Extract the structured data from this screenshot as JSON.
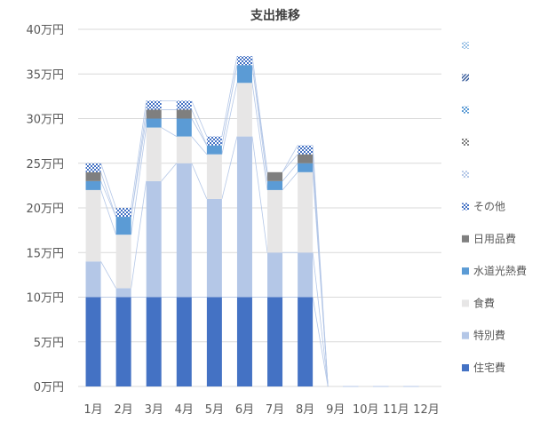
{
  "chart_data": {
    "type": "bar",
    "stacked": true,
    "title": "支出推移",
    "categories": [
      "1月",
      "2月",
      "3月",
      "4月",
      "5月",
      "6月",
      "7月",
      "8月",
      "9月",
      "10月",
      "11月",
      "12月"
    ],
    "y_ticks": [
      "0万円",
      "5万円",
      "10万円",
      "15万円",
      "20万円",
      "25万円",
      "30万円",
      "35万円",
      "40万円"
    ],
    "ylim": [
      0,
      40
    ],
    "ystep": 5,
    "grid": true,
    "legend_position": "right",
    "series": [
      {
        "name": "住宅費",
        "color": "#4472c4",
        "pattern": "solid",
        "values": [
          10,
          10,
          10,
          10,
          10,
          10,
          10,
          10,
          0,
          0,
          0,
          0
        ]
      },
      {
        "name": "特別費",
        "color": "#b4c7e7",
        "pattern": "solid",
        "values": [
          4,
          1,
          13,
          15,
          11,
          18,
          5,
          5,
          0,
          0,
          0,
          0
        ]
      },
      {
        "name": "食費",
        "color": "#e7e6e6",
        "pattern": "solid",
        "values": [
          8,
          6,
          6,
          3,
          5,
          6,
          7,
          9,
          0,
          0,
          0,
          0
        ]
      },
      {
        "name": "水道光熱費",
        "color": "#5b9bd5",
        "pattern": "solid",
        "values": [
          1,
          2,
          1,
          2,
          1,
          2,
          1,
          1,
          0,
          0,
          0,
          0
        ]
      },
      {
        "name": "日用品費",
        "color": "#7f7f7f",
        "pattern": "solid",
        "values": [
          1,
          0,
          1,
          1,
          0,
          0,
          1,
          1,
          0,
          0,
          0,
          0
        ]
      },
      {
        "name": "その他",
        "color": "#4472c4",
        "pattern": "checker",
        "values": [
          1,
          1,
          1,
          1,
          1,
          1,
          0,
          1,
          0,
          0,
          0,
          0
        ]
      },
      {
        "name": "",
        "color": "#b4c7e7",
        "pattern": "checker",
        "values": [
          0,
          0,
          0,
          0,
          0,
          0,
          0,
          0,
          0,
          0,
          0,
          0
        ]
      },
      {
        "name": "",
        "color": "#7f7f7f",
        "pattern": "checker",
        "values": [
          0,
          0,
          0,
          0,
          0,
          0,
          0,
          0,
          0,
          0,
          0,
          0
        ]
      },
      {
        "name": "",
        "color": "#5b9bd5",
        "pattern": "checker",
        "values": [
          0,
          0,
          0,
          0,
          0,
          0,
          0,
          0,
          0,
          0,
          0,
          0
        ]
      },
      {
        "name": "",
        "color": "#2f5597",
        "pattern": "diagonal",
        "values": [
          0,
          0,
          0,
          0,
          0,
          0,
          0,
          0,
          0,
          0,
          0,
          0
        ]
      },
      {
        "name": "",
        "color": "#9dc3e6",
        "pattern": "checker",
        "values": [
          0,
          0,
          0,
          0,
          0,
          0,
          0,
          0,
          0,
          0,
          0,
          0
        ]
      }
    ]
  }
}
